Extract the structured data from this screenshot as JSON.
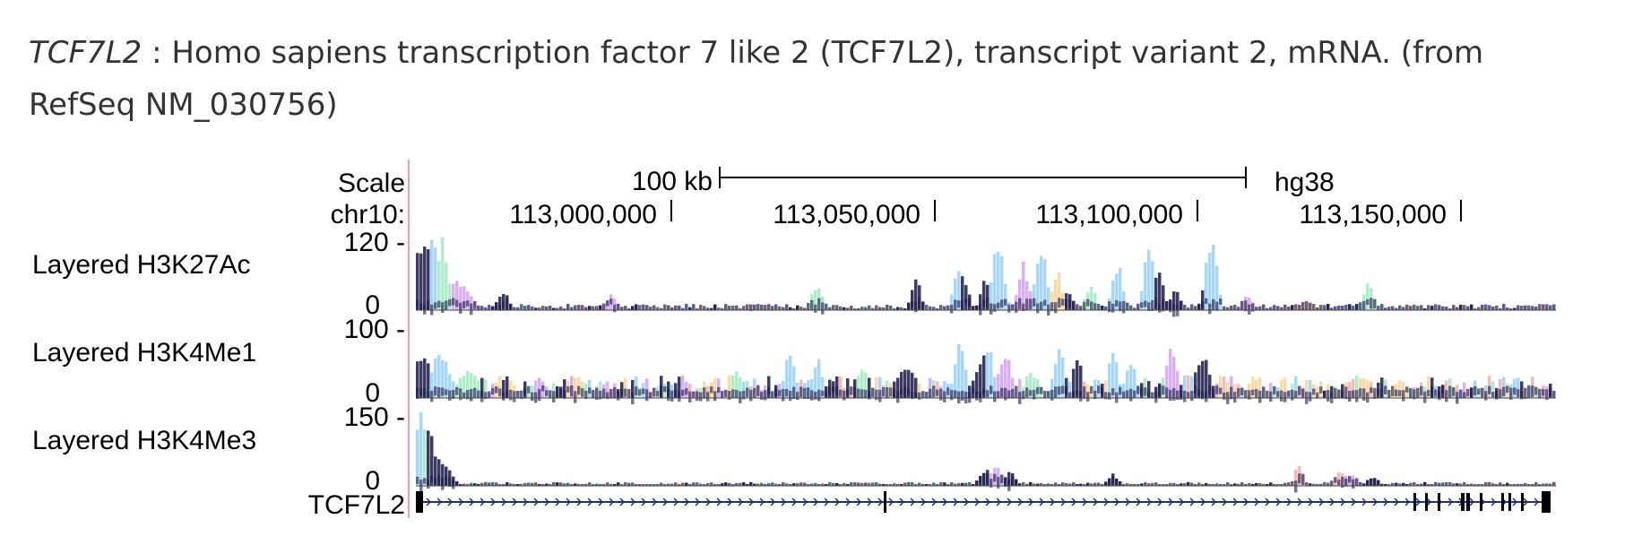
{
  "caption": {
    "gene_symbol": "TCF7L2",
    "description": " : Homo sapiens transcription factor 7 like 2 (TCF7L2), transcript variant 2, mRNA. (from RefSeq NM_030756)"
  },
  "browser": {
    "scale_label": "Scale",
    "scale_bar_label": "100 kb",
    "assembly": "hg38",
    "chrom_label": "chr10:",
    "positions": [
      "113,000,000",
      "113,050,000",
      "113,100,000",
      "113,150,000"
    ],
    "tracks": [
      {
        "name": "Layered H3K27Ac",
        "ymax": "120 -",
        "ymin": "0"
      },
      {
        "name": "Layered H3K4Me1",
        "ymax": "100 -",
        "ymin": "0"
      },
      {
        "name": "Layered H3K4Me3",
        "ymax": "150 -",
        "ymin": "0"
      }
    ],
    "gene_label": "TCF7L2",
    "layer_colors": [
      "#f0c060",
      "#c070f0",
      "#70e0a0",
      "#60b8f0",
      "#f08080",
      "#1a1a4a"
    ]
  }
}
